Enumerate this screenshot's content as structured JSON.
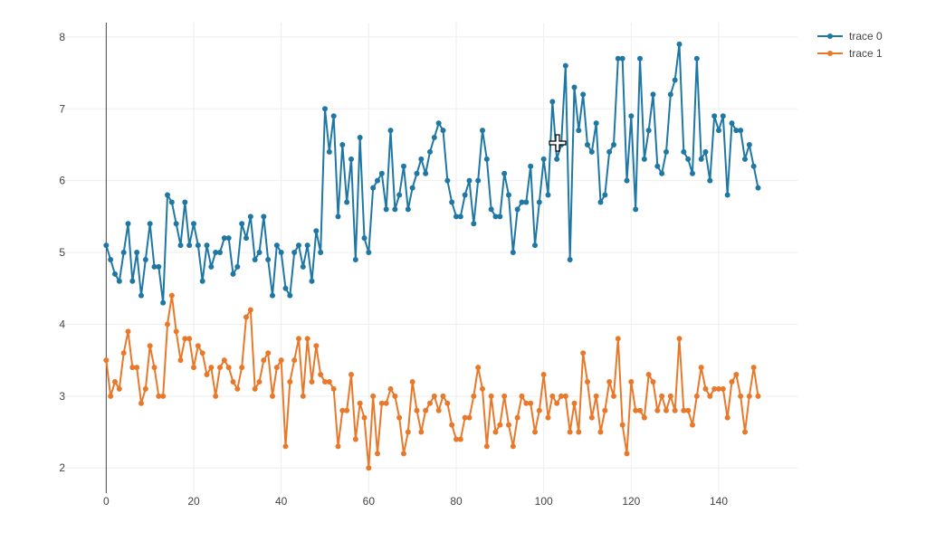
{
  "chart_data": {
    "type": "line",
    "title": "",
    "xlabel": "",
    "ylabel": "",
    "xlim": [
      -10,
      158
    ],
    "ylim": [
      1.65,
      8.2
    ],
    "xticks": [
      0,
      20,
      40,
      60,
      80,
      100,
      120,
      140
    ],
    "yticks": [
      2,
      3,
      4,
      5,
      6,
      7,
      8
    ],
    "grid": true,
    "legend": "top-right",
    "series": [
      {
        "name": "trace 0",
        "color": "#1f77a4",
        "x": [
          0,
          1,
          2,
          3,
          4,
          5,
          6,
          7,
          8,
          9,
          10,
          11,
          12,
          13,
          14,
          15,
          16,
          17,
          18,
          19,
          20,
          21,
          22,
          23,
          24,
          25,
          26,
          27,
          28,
          29,
          30,
          31,
          32,
          33,
          34,
          35,
          36,
          37,
          38,
          39,
          40,
          41,
          42,
          43,
          44,
          45,
          46,
          47,
          48,
          49,
          50,
          51,
          52,
          53,
          54,
          55,
          56,
          57,
          58,
          59,
          60,
          61,
          62,
          63,
          64,
          65,
          66,
          67,
          68,
          69,
          70,
          71,
          72,
          73,
          74,
          75,
          76,
          77,
          78,
          79,
          80,
          81,
          82,
          83,
          84,
          85,
          86,
          87,
          88,
          89,
          90,
          91,
          92,
          93,
          94,
          95,
          96,
          97,
          98,
          99,
          100,
          101,
          102,
          103,
          104,
          105,
          106,
          107,
          108,
          109,
          110,
          111,
          112,
          113,
          114,
          115,
          116,
          117,
          118,
          119,
          120,
          121,
          122,
          123,
          124,
          125,
          126,
          127,
          128,
          129,
          130,
          131,
          132,
          133,
          134,
          135,
          136,
          137,
          138,
          139,
          140,
          141,
          142,
          143,
          144,
          145,
          146,
          147,
          148,
          149
        ],
        "values": [
          5.1,
          4.9,
          4.7,
          4.6,
          5.0,
          5.4,
          4.6,
          5.0,
          4.4,
          4.9,
          5.4,
          4.8,
          4.8,
          4.3,
          5.8,
          5.7,
          5.4,
          5.1,
          5.7,
          5.1,
          5.4,
          5.1,
          4.6,
          5.1,
          4.8,
          5.0,
          5.0,
          5.2,
          5.2,
          4.7,
          4.8,
          5.4,
          5.2,
          5.5,
          4.9,
          5.0,
          5.5,
          4.9,
          4.4,
          5.1,
          5.0,
          4.5,
          4.4,
          5.0,
          5.1,
          4.8,
          5.1,
          4.6,
          5.3,
          5.0,
          7.0,
          6.4,
          6.9,
          5.5,
          6.5,
          5.7,
          6.3,
          4.9,
          6.6,
          5.2,
          5.0,
          5.9,
          6.0,
          6.1,
          5.6,
          6.7,
          5.6,
          5.8,
          6.2,
          5.6,
          5.9,
          6.1,
          6.3,
          6.1,
          6.4,
          6.6,
          6.8,
          6.7,
          6.0,
          5.7,
          5.5,
          5.5,
          5.8,
          6.0,
          5.4,
          6.0,
          6.7,
          6.3,
          5.6,
          5.5,
          5.5,
          6.1,
          5.8,
          5.0,
          5.6,
          5.7,
          5.7,
          6.2,
          5.1,
          5.7,
          6.3,
          5.8,
          7.1,
          6.3,
          6.5,
          7.6,
          4.9,
          7.3,
          6.7,
          7.2,
          6.5,
          6.4,
          6.8,
          5.7,
          5.8,
          6.4,
          6.5,
          7.7,
          7.7,
          6.0,
          6.9,
          5.6,
          7.7,
          6.3,
          6.7,
          7.2,
          6.2,
          6.1,
          6.4,
          7.2,
          7.4,
          7.9,
          6.4,
          6.3,
          6.1,
          7.7,
          6.3,
          6.4,
          6.0,
          6.9,
          6.7,
          6.9,
          5.8,
          6.8,
          6.7,
          6.7,
          6.3,
          6.5,
          6.2,
          5.9
        ]
      },
      {
        "name": "trace 1",
        "color": "#e8792b",
        "x": [
          0,
          1,
          2,
          3,
          4,
          5,
          6,
          7,
          8,
          9,
          10,
          11,
          12,
          13,
          14,
          15,
          16,
          17,
          18,
          19,
          20,
          21,
          22,
          23,
          24,
          25,
          26,
          27,
          28,
          29,
          30,
          31,
          32,
          33,
          34,
          35,
          36,
          37,
          38,
          39,
          40,
          41,
          42,
          43,
          44,
          45,
          46,
          47,
          48,
          49,
          50,
          51,
          52,
          53,
          54,
          55,
          56,
          57,
          58,
          59,
          60,
          61,
          62,
          63,
          64,
          65,
          66,
          67,
          68,
          69,
          70,
          71,
          72,
          73,
          74,
          75,
          76,
          77,
          78,
          79,
          80,
          81,
          82,
          83,
          84,
          85,
          86,
          87,
          88,
          89,
          90,
          91,
          92,
          93,
          94,
          95,
          96,
          97,
          98,
          99,
          100,
          101,
          102,
          103,
          104,
          105,
          106,
          107,
          108,
          109,
          110,
          111,
          112,
          113,
          114,
          115,
          116,
          117,
          118,
          119,
          120,
          121,
          122,
          123,
          124,
          125,
          126,
          127,
          128,
          129,
          130,
          131,
          132,
          133,
          134,
          135,
          136,
          137,
          138,
          139,
          140,
          141,
          142,
          143,
          144,
          145,
          146,
          147,
          148,
          149
        ],
        "values": [
          3.5,
          3.0,
          3.2,
          3.1,
          3.6,
          3.9,
          3.4,
          3.4,
          2.9,
          3.1,
          3.7,
          3.4,
          3.0,
          3.0,
          4.0,
          4.4,
          3.9,
          3.5,
          3.8,
          3.8,
          3.4,
          3.7,
          3.6,
          3.3,
          3.4,
          3.0,
          3.4,
          3.5,
          3.4,
          3.2,
          3.1,
          3.4,
          4.1,
          4.2,
          3.1,
          3.2,
          3.5,
          3.6,
          3.0,
          3.4,
          3.5,
          2.3,
          3.2,
          3.5,
          3.8,
          3.0,
          3.8,
          3.2,
          3.7,
          3.3,
          3.2,
          3.2,
          3.1,
          2.3,
          2.8,
          2.8,
          3.3,
          2.4,
          2.9,
          2.7,
          2.0,
          3.0,
          2.2,
          2.9,
          2.9,
          3.1,
          3.0,
          2.7,
          2.2,
          2.5,
          3.2,
          2.8,
          2.5,
          2.8,
          2.9,
          3.0,
          2.8,
          3.0,
          2.9,
          2.6,
          2.4,
          2.4,
          2.7,
          2.7,
          3.0,
          3.4,
          3.1,
          2.3,
          3.0,
          2.5,
          2.6,
          3.0,
          2.6,
          2.3,
          2.7,
          3.0,
          2.9,
          2.9,
          2.5,
          2.8,
          3.3,
          2.7,
          3.0,
          2.9,
          3.0,
          3.0,
          2.5,
          2.9,
          2.5,
          3.6,
          3.2,
          2.7,
          3.0,
          2.5,
          2.8,
          3.2,
          3.0,
          3.8,
          2.6,
          2.2,
          3.2,
          2.8,
          2.8,
          2.7,
          3.3,
          3.2,
          2.8,
          3.0,
          2.8,
          3.0,
          2.8,
          3.8,
          2.8,
          2.8,
          2.6,
          3.0,
          3.4,
          3.1,
          3.0,
          3.1,
          3.1,
          3.1,
          2.7,
          3.2,
          3.3,
          3.0,
          2.5,
          3.0,
          3.4,
          3.0
        ]
      }
    ]
  }
}
